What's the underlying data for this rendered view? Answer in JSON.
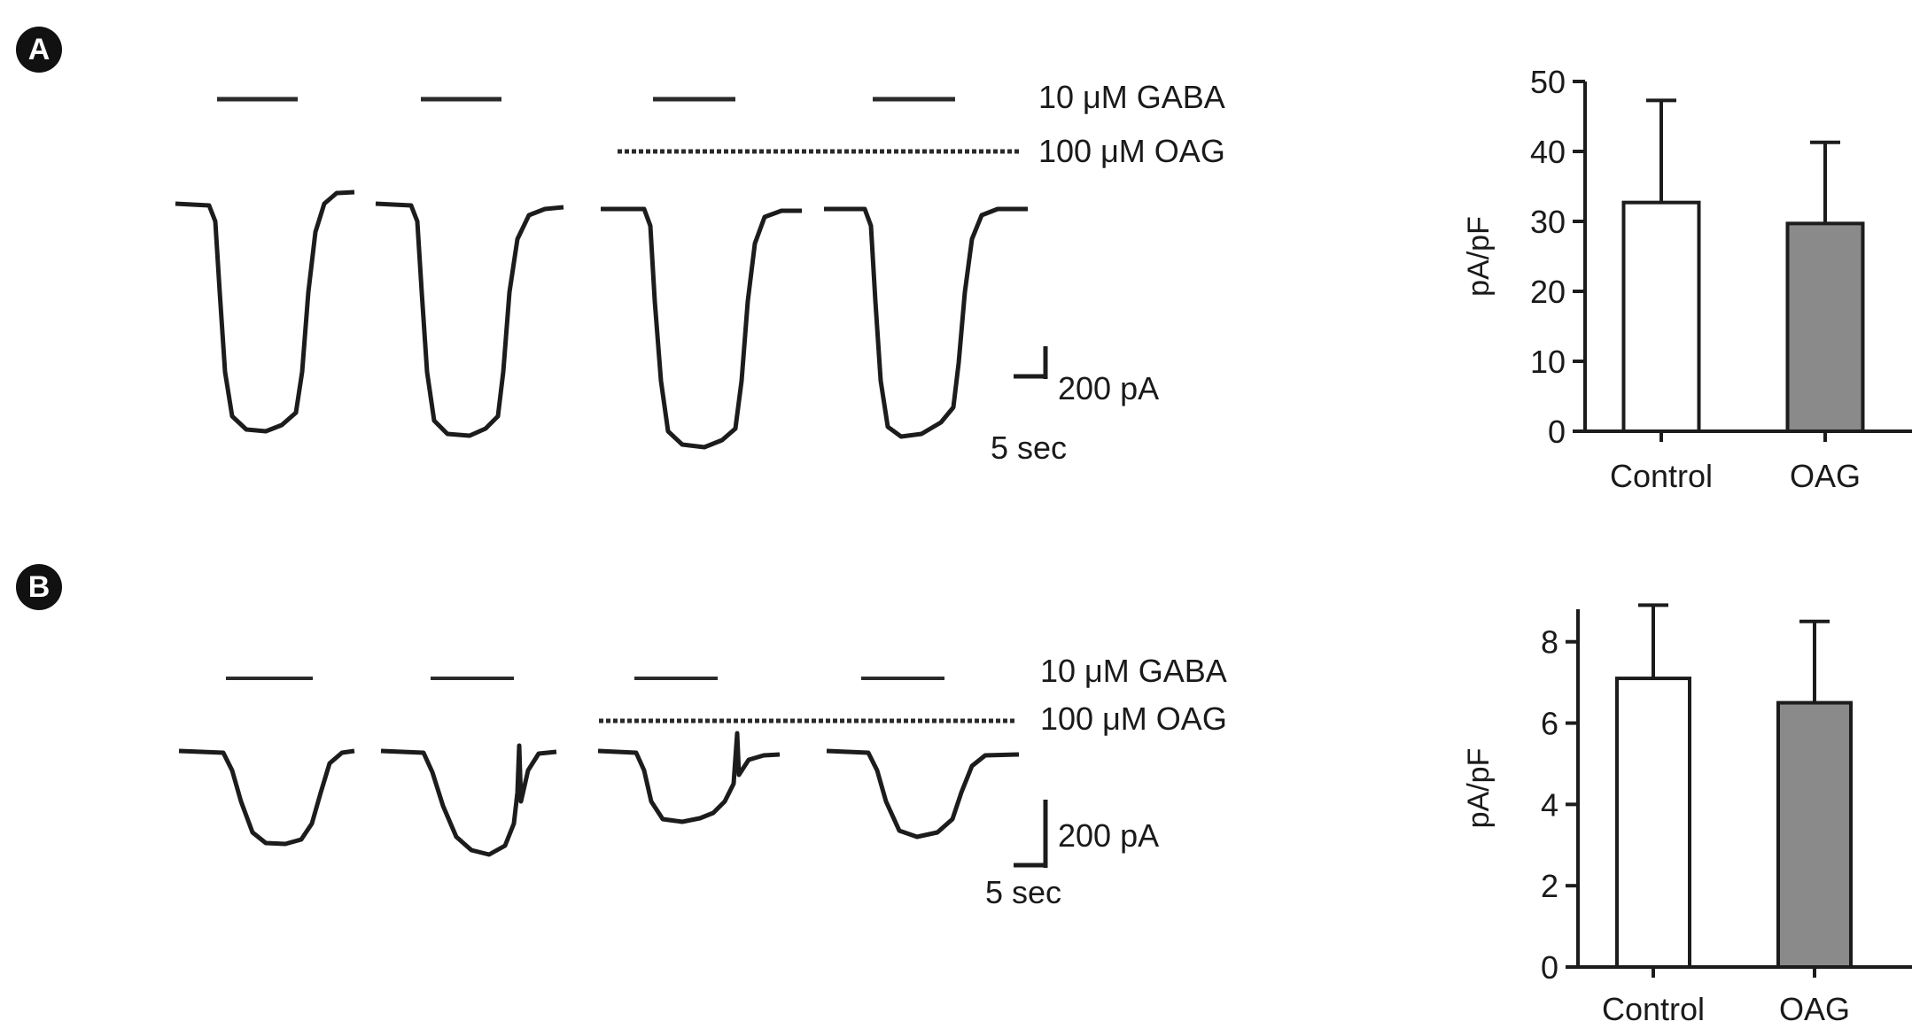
{
  "panels": [
    {
      "label": "A",
      "traces": {
        "gaba_label": "10 μM GABA",
        "oag_label": "100 μM OAG",
        "scale_current": "200 pA",
        "scale_time": "5 sec"
      }
    },
    {
      "label": "B",
      "traces": {
        "gaba_label": "10 μM GABA",
        "oag_label": "100 μM OAG",
        "scale_current": "200 pA",
        "scale_time": "5 sec"
      }
    }
  ],
  "chart_data": [
    {
      "type": "bar",
      "title": "",
      "xlabel": "",
      "ylabel": "pA/pF",
      "categories": [
        "Control",
        "OAG"
      ],
      "values": [
        32.7,
        29.7
      ],
      "error_upper": [
        47.3,
        41.3
      ],
      "ylim": [
        0,
        50
      ],
      "yticks": [
        0,
        10,
        20,
        30,
        40,
        50
      ],
      "colors": [
        "#ffffff",
        "#8a8a8a"
      ]
    },
    {
      "type": "bar",
      "title": "",
      "xlabel": "",
      "ylabel": "pA/pF",
      "categories": [
        "Control",
        "OAG"
      ],
      "values": [
        7.1,
        6.5
      ],
      "error_upper": [
        8.9,
        8.5
      ],
      "ylim": [
        0,
        8.8
      ],
      "yticks": [
        0,
        2,
        4,
        6,
        8
      ],
      "colors": [
        "#ffffff",
        "#8a8a8a"
      ]
    }
  ]
}
